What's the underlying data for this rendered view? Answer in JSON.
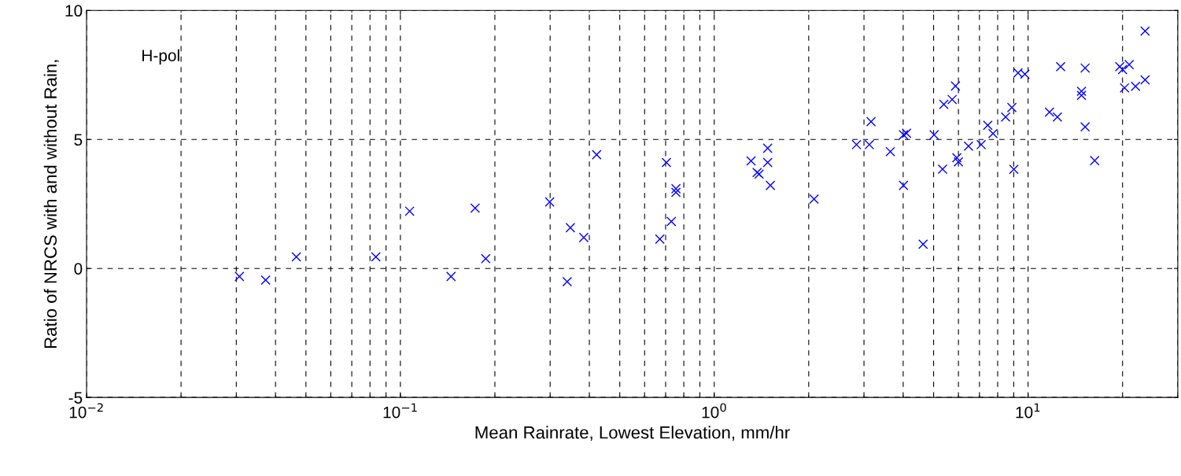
{
  "chart_data": {
    "type": "scatter",
    "xlabel": "Mean Rainrate, Lowest Elevation, mm/hr",
    "ylabel": "Ratio of NRCS with and without Rain,",
    "annotations": [
      "H-pol"
    ],
    "log": "x",
    "grid": true,
    "marker": "cross",
    "xlim": [
      0.01,
      30
    ],
    "xticks": [
      {
        "value": 0.01,
        "label": "10$^{−2}$"
      },
      {
        "value": 0.1,
        "label": "10$^{−1}$"
      },
      {
        "value": 1,
        "label": "10$^{0}$"
      },
      {
        "value": 10,
        "label": "10$^{1}$"
      }
    ],
    "ylim": [
      -5,
      10
    ],
    "yticks": [
      -5,
      0,
      5,
      10
    ],
    "series": [
      {
        "color": "#0000ff",
        "x": [
          0.0307,
          0.0372,
          0.0466,
          0.0835,
          0.107,
          0.145,
          0.173,
          0.187,
          0.299,
          0.34,
          0.348,
          0.384,
          0.422,
          0.671,
          0.704,
          0.73,
          0.755,
          0.755,
          1.31,
          1.48,
          1.48,
          1.37,
          1.39,
          1.51,
          2.08,
          2.84,
          3.12,
          3.16,
          3.64,
          4.01,
          4.1,
          4.01,
          4.63,
          5.02,
          5.34,
          5.39,
          5.73,
          5.87,
          5.93,
          6.0,
          6.46,
          7.09,
          7.44,
          7.73,
          8.48,
          8.88,
          9.01,
          9.29,
          9.77,
          11.7,
          12.4,
          12.7,
          14.8,
          14.8,
          15.2,
          15.2,
          16.3,
          19.6,
          20.0,
          20.3,
          21.0,
          22.0,
          23.6,
          23.6
        ],
        "values": [
          -0.31,
          -0.45,
          0.45,
          0.45,
          2.22,
          -0.31,
          2.34,
          0.38,
          2.58,
          -0.51,
          1.58,
          1.2,
          4.41,
          1.14,
          4.11,
          1.82,
          3.09,
          2.95,
          4.17,
          4.66,
          4.11,
          3.72,
          3.66,
          3.22,
          2.69,
          4.8,
          4.8,
          5.69,
          4.53,
          5.18,
          5.24,
          3.22,
          0.94,
          5.18,
          3.85,
          6.36,
          6.55,
          7.07,
          4.29,
          4.13,
          4.74,
          4.8,
          5.55,
          5.23,
          5.87,
          6.24,
          3.84,
          7.58,
          7.53,
          6.06,
          5.87,
          7.82,
          6.87,
          6.71,
          7.77,
          5.49,
          4.18,
          7.82,
          7.71,
          7.0,
          7.9,
          7.06,
          9.2,
          7.31
        ]
      }
    ]
  }
}
